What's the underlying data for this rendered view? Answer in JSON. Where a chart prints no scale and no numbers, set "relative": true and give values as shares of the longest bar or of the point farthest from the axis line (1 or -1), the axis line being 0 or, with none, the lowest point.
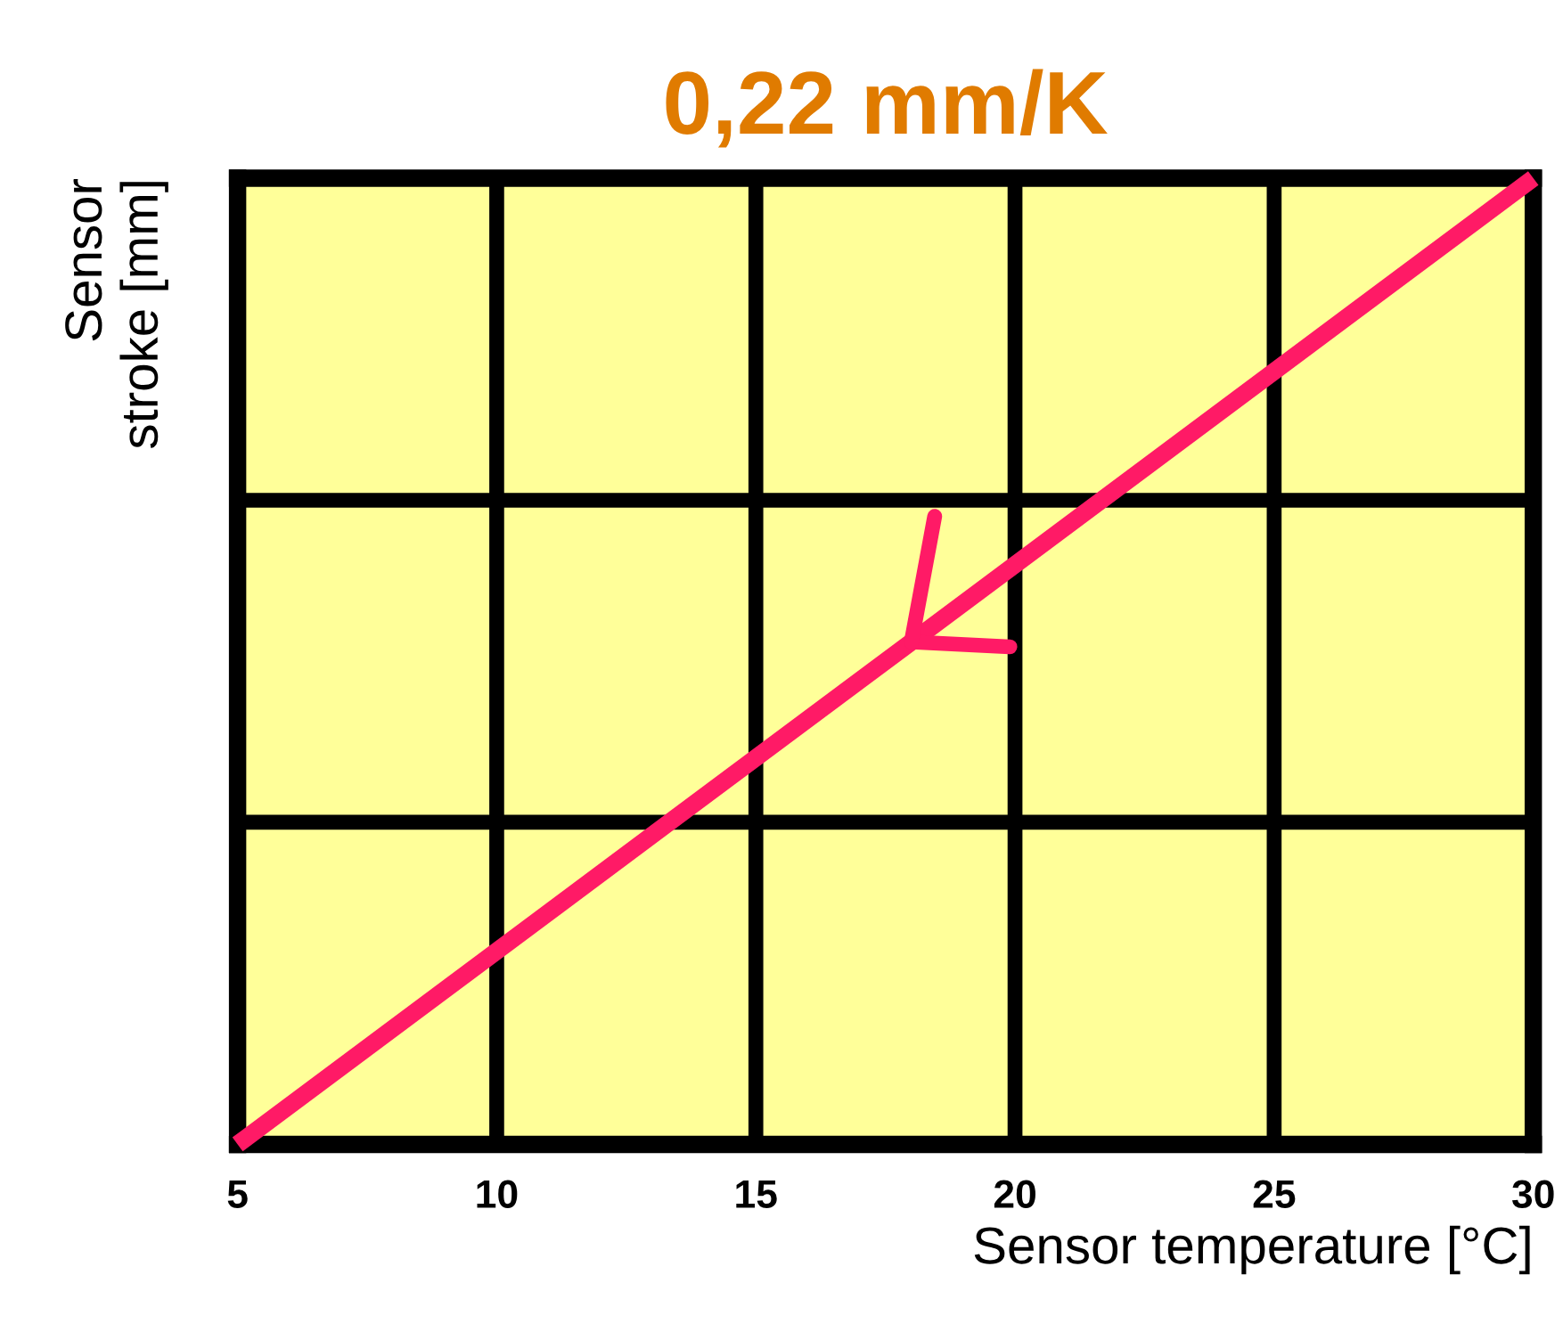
{
  "chart_data": {
    "type": "line",
    "title": "0,22 mm/K",
    "xlabel": "Sensor temperature [°C]",
    "ylabel": "Sensor\nstroke [mm]",
    "x": [
      5,
      30
    ],
    "series": [
      {
        "color": "#ff1a66",
        "values": [
          0,
          1
        ]
      }
    ],
    "relative": true,
    "xlim": [
      5,
      30
    ],
    "xticks": [
      5,
      10,
      15,
      20,
      25,
      30
    ],
    "grid": true,
    "legend": false,
    "marker": "none",
    "line_style": "solid"
  }
}
